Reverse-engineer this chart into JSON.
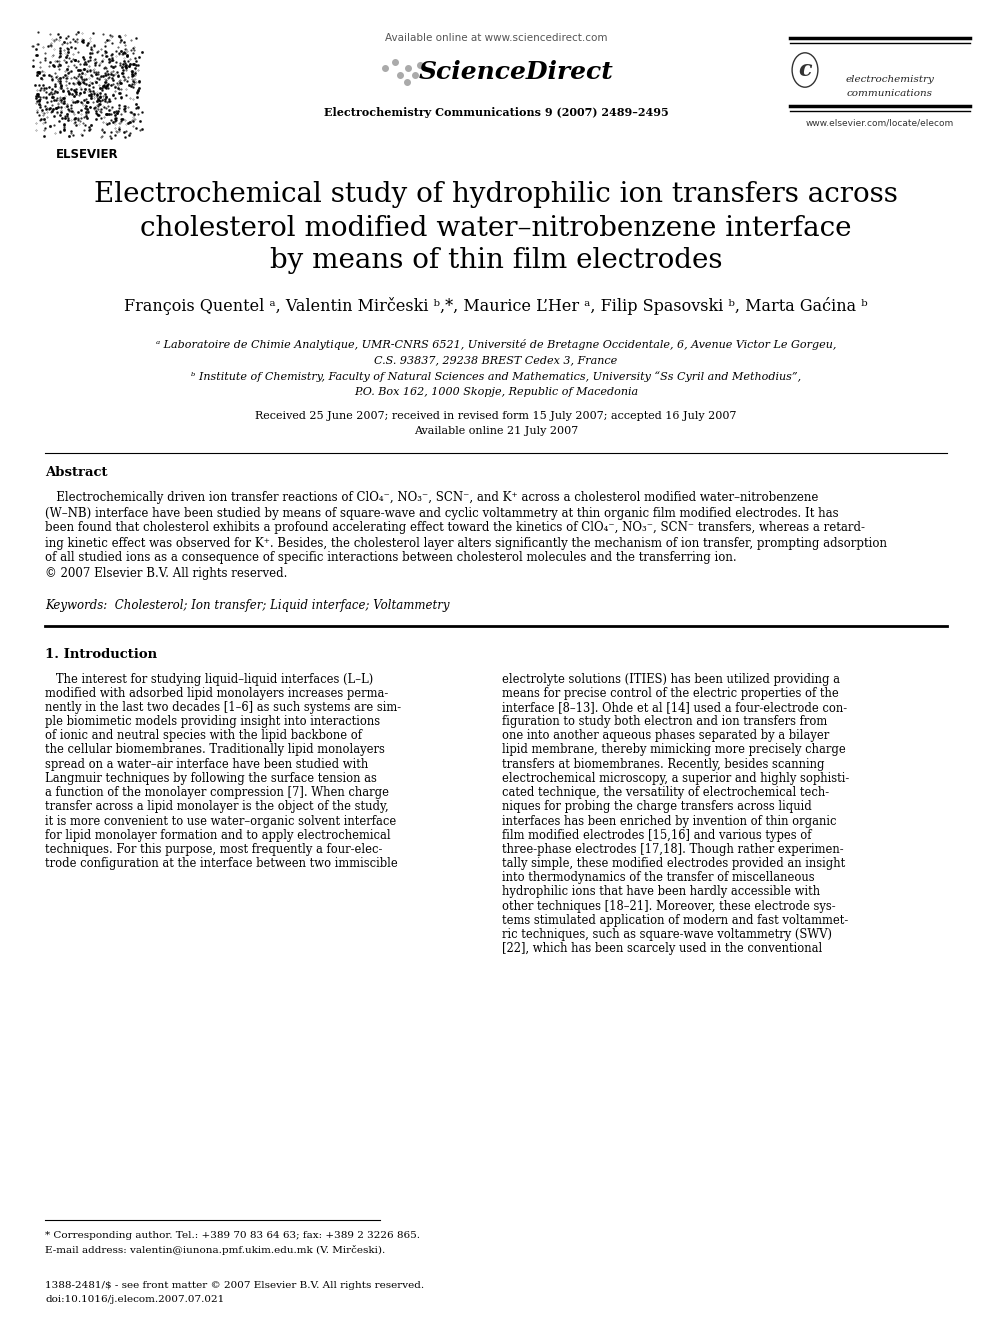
{
  "bg_color": "#ffffff",
  "title_line1": "Electrochemical study of hydrophilic ion transfers across",
  "title_line2": "cholesterol modified water–nitrobenzene interface",
  "title_line3": "by means of thin film electrodes",
  "authors": "François Quentel ᵃ, Valentin Mirčeski ᵇ,*, Maurice L’Her ᵃ, Filip Spasovski ᵇ, Marta Gaćina ᵇ",
  "affil_a": "ᵃ Laboratoire de Chimie Analytique, UMR-CNRS 6521, Université de Bretagne Occidentale, 6, Avenue Victor Le Gorgeu,",
  "affil_a2": "C.S. 93837, 29238 BREST Cedex 3, France",
  "affil_b": "ᵇ Institute of Chemistry, Faculty of Natural Sciences and Mathematics, University “Ss Cyril and Methodius”,",
  "affil_b2": "P.O. Box 162, 1000 Skopje, Republic of Macedonia",
  "received": "Received 25 June 2007; received in revised form 15 July 2007; accepted 16 July 2007",
  "available": "Available online 21 July 2007",
  "header_url": "Available online at www.sciencedirect.com",
  "journal_info": "Electrochemistry Communications 9 (2007) 2489–2495",
  "website": "www.elsevier.com/locate/elecom",
  "abstract_title": "Abstract",
  "keywords": "Keywords:  Cholesterol; Ion transfer; Liquid interface; Voltammetry",
  "section1_title": "1. Introduction",
  "footnote_star": "* Corresponding author. Tel.: +389 70 83 64 63; fax: +389 2 3226 865.",
  "footnote_email": "E-mail address: valentin@iunona.pmf.ukim.edu.mk (V. Mirčeski).",
  "footer_issn": "1388-2481/$ - see front matter © 2007 Elsevier B.V. All rights reserved.",
  "footer_doi": "doi:10.1016/j.elecom.2007.07.021",
  "elsevier_text": "ELSEVIER",
  "sd_text": "ScienceDirect",
  "ec_line1": "electrochemistry",
  "ec_line2": "communications"
}
